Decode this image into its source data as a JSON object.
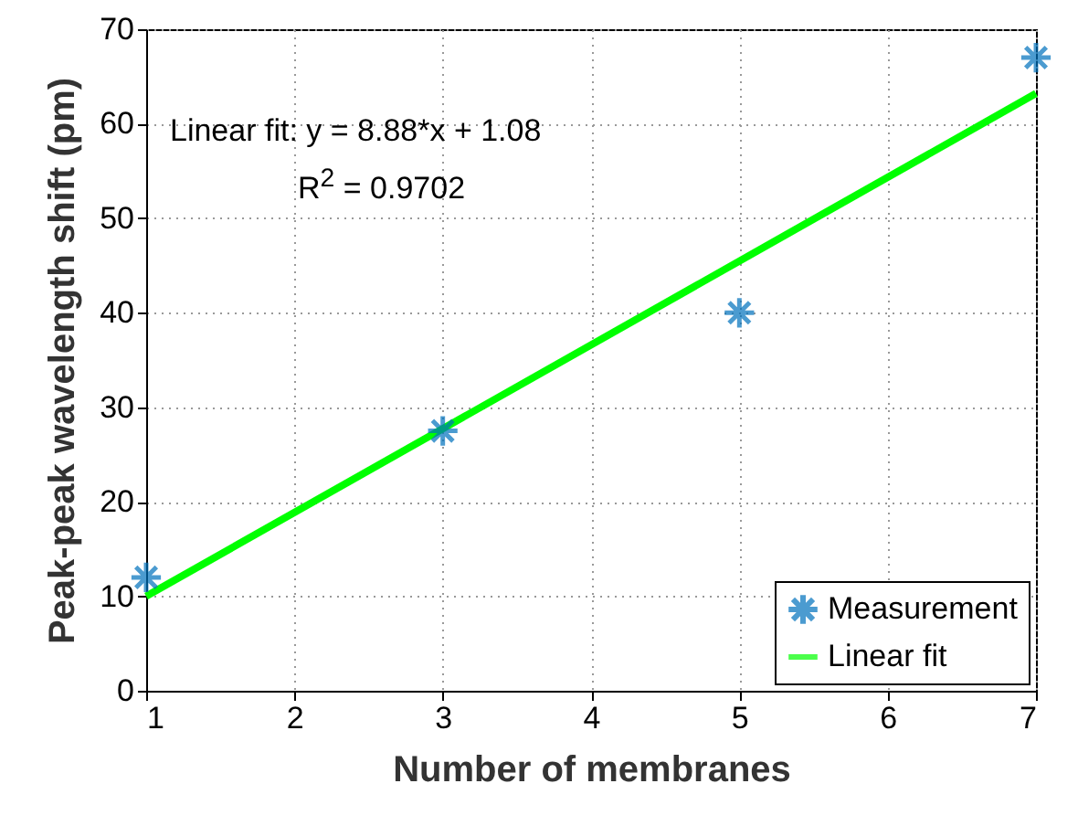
{
  "chart_data": {
    "type": "scatter",
    "xlabel": "Number of membranes",
    "ylabel": "Peak-peak wavelength shift (pm)",
    "xlim": [
      1,
      7
    ],
    "ylim": [
      0,
      70
    ],
    "xticks": [
      1,
      2,
      3,
      4,
      5,
      6,
      7
    ],
    "yticks": [
      0,
      10,
      20,
      30,
      40,
      50,
      60,
      70
    ],
    "grid": true,
    "legend": "bottom right",
    "annotations": [
      "Linear fit:  y = 8.88*x + 1.08",
      "R$^{2}$ = 0.9702"
    ],
    "series": [
      {
        "name": "Measurement",
        "marker": "cross",
        "color": "#0072bd",
        "x": [
          1,
          3,
          5,
          7
        ],
        "values": [
          12,
          27.5,
          40,
          67
        ]
      },
      {
        "name": "Linear fit",
        "type": "line",
        "marker": "none",
        "color": "#00ff00",
        "x": [
          1,
          7
        ],
        "values": [
          10,
          63.2
        ]
      }
    ]
  }
}
